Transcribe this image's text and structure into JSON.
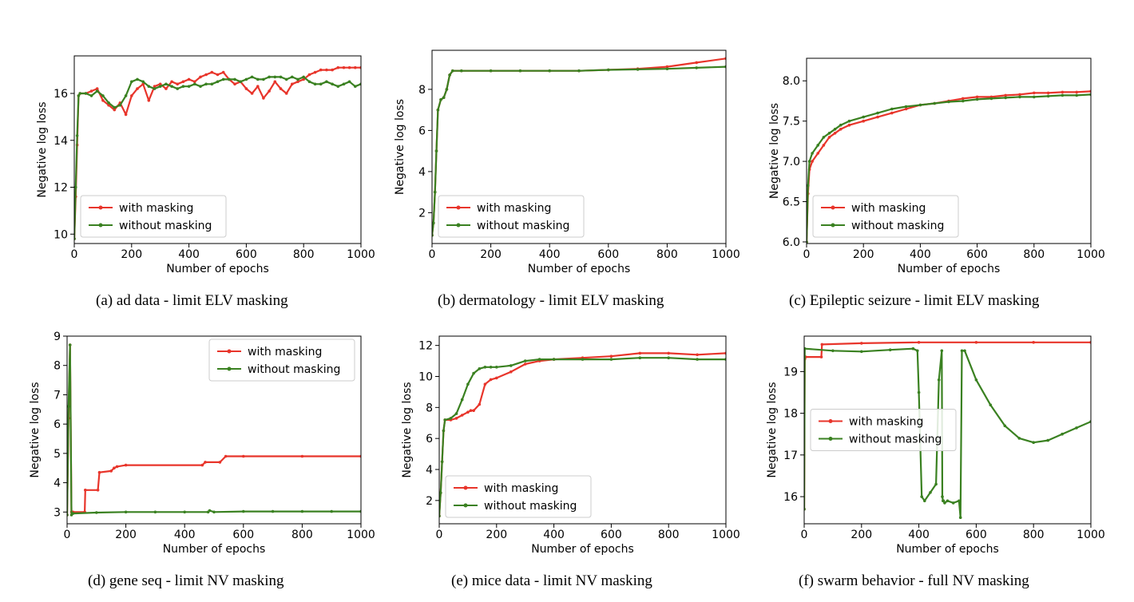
{
  "colors": {
    "with_masking": "#e8352b",
    "without_masking": "#3a8121"
  },
  "chart_data": [
    {
      "type": "line",
      "caption": "(a) ad data - limit ELV masking",
      "xlabel": "Number of epochs",
      "ylabel": "Negative log loss",
      "xlim": [
        0,
        1000
      ],
      "ylim": [
        9.6,
        17.6
      ],
      "xticks": [
        0,
        200,
        400,
        600,
        800,
        1000
      ],
      "yticks": [
        10,
        12,
        14,
        16
      ],
      "legend": "lower-left",
      "series": [
        {
          "name": "with masking",
          "color": "#e8352b",
          "x": [
            0,
            5,
            10,
            15,
            20,
            40,
            60,
            80,
            100,
            120,
            140,
            160,
            180,
            200,
            220,
            240,
            260,
            280,
            300,
            320,
            340,
            360,
            380,
            400,
            420,
            440,
            460,
            480,
            500,
            520,
            540,
            560,
            580,
            600,
            620,
            640,
            660,
            680,
            700,
            720,
            740,
            760,
            780,
            800,
            820,
            840,
            860,
            880,
            900,
            920,
            940,
            960,
            980,
            1000
          ],
          "y": [
            9.8,
            11.6,
            13.8,
            15.9,
            16.0,
            16.0,
            16.1,
            16.2,
            15.7,
            15.5,
            15.3,
            15.6,
            15.1,
            15.9,
            16.2,
            16.4,
            15.7,
            16.3,
            16.4,
            16.2,
            16.5,
            16.4,
            16.5,
            16.6,
            16.5,
            16.7,
            16.8,
            16.9,
            16.8,
            16.9,
            16.6,
            16.4,
            16.5,
            16.2,
            16.0,
            16.3,
            15.8,
            16.1,
            16.5,
            16.2,
            16.0,
            16.4,
            16.5,
            16.6,
            16.8,
            16.9,
            17.0,
            17.0,
            17.0,
            17.1,
            17.1,
            17.1,
            17.1,
            17.1
          ]
        },
        {
          "name": "without masking",
          "color": "#3a8121",
          "x": [
            0,
            5,
            10,
            15,
            20,
            40,
            60,
            80,
            100,
            120,
            140,
            160,
            180,
            200,
            220,
            240,
            260,
            280,
            300,
            320,
            340,
            360,
            380,
            400,
            420,
            440,
            460,
            480,
            500,
            520,
            540,
            560,
            580,
            600,
            620,
            640,
            660,
            680,
            700,
            720,
            740,
            760,
            780,
            800,
            820,
            840,
            860,
            880,
            900,
            920,
            940,
            960,
            980,
            1000
          ],
          "y": [
            9.8,
            12.0,
            14.2,
            15.9,
            16.0,
            16.0,
            15.9,
            16.1,
            15.9,
            15.6,
            15.4,
            15.5,
            15.9,
            16.5,
            16.6,
            16.5,
            16.3,
            16.2,
            16.3,
            16.4,
            16.3,
            16.2,
            16.3,
            16.3,
            16.4,
            16.3,
            16.4,
            16.4,
            16.5,
            16.6,
            16.6,
            16.6,
            16.5,
            16.6,
            16.7,
            16.6,
            16.6,
            16.7,
            16.7,
            16.7,
            16.6,
            16.7,
            16.6,
            16.7,
            16.5,
            16.4,
            16.4,
            16.5,
            16.4,
            16.3,
            16.4,
            16.5,
            16.3,
            16.4
          ]
        }
      ]
    },
    {
      "type": "line",
      "caption": "(b) dermatology - limit ELV masking",
      "xlabel": "Number of epochs",
      "ylabel": "Negative log loss",
      "xlim": [
        0,
        1000
      ],
      "ylim": [
        0.5,
        9.9
      ],
      "xticks": [
        0,
        200,
        400,
        600,
        800,
        1000
      ],
      "yticks": [
        2,
        4,
        6,
        8
      ],
      "legend": "lower-left",
      "series": [
        {
          "name": "with masking",
          "color": "#e8352b",
          "x": [
            0,
            5,
            10,
            15,
            20,
            30,
            40,
            50,
            60,
            70,
            100,
            200,
            300,
            400,
            500,
            600,
            700,
            800,
            900,
            1000
          ],
          "y": [
            0.9,
            1.5,
            3.0,
            5.0,
            7.0,
            7.5,
            7.6,
            8.0,
            8.7,
            8.9,
            8.9,
            8.9,
            8.9,
            8.9,
            8.9,
            8.95,
            9.0,
            9.1,
            9.3,
            9.5
          ]
        },
        {
          "name": "without masking",
          "color": "#3a8121",
          "x": [
            0,
            5,
            10,
            15,
            20,
            30,
            40,
            50,
            60,
            70,
            100,
            200,
            300,
            400,
            500,
            600,
            700,
            800,
            900,
            1000
          ],
          "y": [
            0.9,
            1.5,
            3.0,
            5.0,
            7.0,
            7.5,
            7.6,
            8.0,
            8.7,
            8.9,
            8.9,
            8.9,
            8.9,
            8.9,
            8.9,
            8.95,
            8.97,
            9.0,
            9.05,
            9.1
          ]
        }
      ]
    },
    {
      "type": "line",
      "caption": "(c) Epileptic seizure - limit ELV masking",
      "xlabel": "Number of epochs",
      "ylabel": "Negative log loss",
      "xlim": [
        0,
        1000
      ],
      "ylim": [
        5.98,
        8.28
      ],
      "xticks": [
        0,
        200,
        400,
        600,
        800,
        1000
      ],
      "yticks": [
        6.0,
        6.5,
        7.0,
        7.5,
        8.0
      ],
      "legend": "lower-left",
      "series": [
        {
          "name": "with masking",
          "color": "#e8352b",
          "x": [
            0,
            5,
            10,
            20,
            40,
            60,
            80,
            100,
            120,
            150,
            200,
            250,
            300,
            350,
            400,
            450,
            500,
            550,
            600,
            650,
            700,
            750,
            800,
            850,
            900,
            950,
            1000
          ],
          "y": [
            6.0,
            6.6,
            6.9,
            7.0,
            7.1,
            7.2,
            7.3,
            7.35,
            7.4,
            7.45,
            7.5,
            7.55,
            7.6,
            7.65,
            7.7,
            7.72,
            7.75,
            7.78,
            7.8,
            7.8,
            7.82,
            7.83,
            7.85,
            7.85,
            7.86,
            7.86,
            7.87
          ]
        },
        {
          "name": "without masking",
          "color": "#3a8121",
          "x": [
            0,
            5,
            10,
            20,
            40,
            60,
            80,
            100,
            120,
            150,
            200,
            250,
            300,
            350,
            400,
            450,
            500,
            550,
            600,
            650,
            700,
            750,
            800,
            850,
            900,
            950,
            1000
          ],
          "y": [
            6.0,
            6.7,
            7.0,
            7.1,
            7.2,
            7.3,
            7.35,
            7.4,
            7.45,
            7.5,
            7.55,
            7.6,
            7.65,
            7.68,
            7.7,
            7.72,
            7.74,
            7.75,
            7.77,
            7.78,
            7.79,
            7.8,
            7.8,
            7.81,
            7.82,
            7.82,
            7.83
          ]
        }
      ]
    },
    {
      "type": "line",
      "caption": "(d) gene seq - limit NV masking",
      "xlabel": "Number of epochs",
      "ylabel": "Negative log loss",
      "xlim": [
        0,
        1000
      ],
      "ylim": [
        2.6,
        9.0
      ],
      "xticks": [
        0,
        200,
        400,
        600,
        800,
        1000
      ],
      "yticks": [
        3,
        4,
        5,
        6,
        7,
        8,
        9
      ],
      "legend": "top-right",
      "series": [
        {
          "name": "with masking",
          "color": "#e8352b",
          "x": [
            0,
            5,
            10,
            15,
            20,
            60,
            62,
            105,
            110,
            150,
            160,
            170,
            200,
            460,
            470,
            520,
            540,
            600,
            800,
            1000
          ],
          "y": [
            2.9,
            6.2,
            8.7,
            3.0,
            3.0,
            3.0,
            3.75,
            3.75,
            4.35,
            4.4,
            4.5,
            4.55,
            4.6,
            4.6,
            4.7,
            4.7,
            4.9,
            4.9,
            4.9,
            4.9
          ]
        },
        {
          "name": "without masking",
          "color": "#3a8121",
          "x": [
            0,
            5,
            10,
            15,
            20,
            100,
            200,
            300,
            400,
            480,
            485,
            500,
            600,
            700,
            800,
            900,
            1000
          ],
          "y": [
            2.9,
            6.6,
            8.7,
            2.9,
            2.95,
            2.98,
            3.0,
            3.0,
            3.0,
            3.0,
            3.05,
            3.0,
            3.02,
            3.02,
            3.02,
            3.02,
            3.02
          ]
        }
      ]
    },
    {
      "type": "line",
      "caption": "(e) mice data - limit NV masking",
      "xlabel": "Number of epochs",
      "ylabel": "Negative log loss",
      "xlim": [
        0,
        1000
      ],
      "ylim": [
        0.5,
        12.6
      ],
      "xticks": [
        0,
        200,
        400,
        600,
        800,
        1000
      ],
      "yticks": [
        2,
        4,
        6,
        8,
        10,
        12
      ],
      "legend": "lower-left",
      "series": [
        {
          "name": "with masking",
          "color": "#e8352b",
          "x": [
            0,
            5,
            10,
            15,
            20,
            40,
            60,
            80,
            100,
            110,
            120,
            140,
            160,
            180,
            200,
            250,
            300,
            350,
            400,
            500,
            600,
            700,
            800,
            900,
            1000
          ],
          "y": [
            1.0,
            2.5,
            4.5,
            6.5,
            7.2,
            7.2,
            7.3,
            7.5,
            7.7,
            7.8,
            7.8,
            8.2,
            9.5,
            9.8,
            9.9,
            10.3,
            10.8,
            11.0,
            11.1,
            11.2,
            11.3,
            11.5,
            11.5,
            11.4,
            11.5
          ]
        },
        {
          "name": "without masking",
          "color": "#3a8121",
          "x": [
            0,
            5,
            10,
            15,
            20,
            40,
            60,
            80,
            100,
            120,
            140,
            160,
            180,
            200,
            250,
            300,
            350,
            400,
            500,
            600,
            700,
            800,
            900,
            1000
          ],
          "y": [
            1.0,
            2.5,
            4.5,
            6.5,
            7.2,
            7.3,
            7.6,
            8.5,
            9.5,
            10.2,
            10.5,
            10.6,
            10.6,
            10.6,
            10.7,
            11.0,
            11.1,
            11.1,
            11.1,
            11.1,
            11.2,
            11.2,
            11.1,
            11.1
          ]
        }
      ]
    },
    {
      "type": "line",
      "caption": "(f) swarm behavior - full NV masking",
      "xlabel": "Number of epochs",
      "ylabel": "Negative log loss",
      "xlim": [
        0,
        1000
      ],
      "ylim": [
        15.35,
        19.85
      ],
      "xticks": [
        0,
        200,
        400,
        600,
        800,
        1000
      ],
      "yticks": [
        16,
        17,
        18,
        19
      ],
      "legend": "center-left",
      "series": [
        {
          "name": "with masking",
          "color": "#e8352b",
          "x": [
            0,
            2,
            5,
            60,
            62,
            200,
            400,
            600,
            800,
            1000
          ],
          "y": [
            15.7,
            19.3,
            19.35,
            19.35,
            19.65,
            19.68,
            19.7,
            19.7,
            19.7,
            19.7
          ]
        },
        {
          "name": "without masking",
          "color": "#3a8121",
          "x": [
            0,
            2,
            100,
            200,
            300,
            380,
            395,
            400,
            410,
            420,
            440,
            460,
            470,
            480,
            482,
            484,
            486,
            490,
            500,
            520,
            540,
            545,
            550,
            560,
            600,
            650,
            700,
            750,
            800,
            850,
            900,
            950,
            1000
          ],
          "y": [
            15.7,
            19.55,
            19.5,
            19.48,
            19.52,
            19.55,
            19.5,
            18.5,
            16.0,
            15.9,
            16.1,
            16.3,
            18.8,
            19.5,
            16.0,
            15.9,
            15.9,
            15.85,
            15.9,
            15.85,
            15.9,
            15.5,
            19.5,
            19.5,
            18.8,
            18.2,
            17.7,
            17.4,
            17.3,
            17.35,
            17.5,
            17.65,
            17.8
          ]
        }
      ]
    }
  ]
}
